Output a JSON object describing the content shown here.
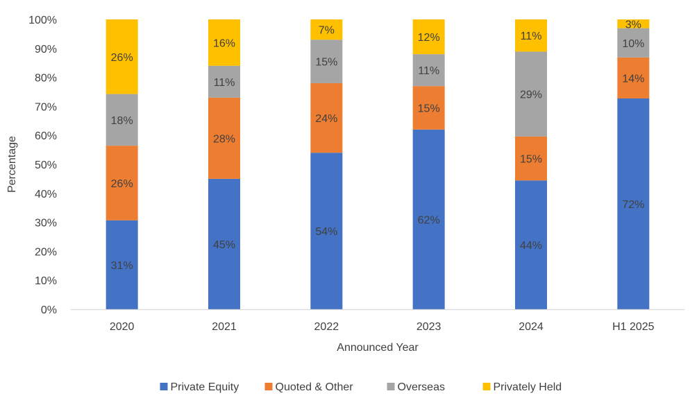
{
  "chart_data": {
    "type": "bar",
    "stacked": true,
    "percent": true,
    "categories": [
      "2020",
      "2021",
      "2022",
      "2023",
      "2024",
      "H1 2025"
    ],
    "series": [
      {
        "name": "Private Equity",
        "color": "#4472C4",
        "values": [
          31,
          45,
          54,
          62,
          44,
          72
        ],
        "labels": [
          "31%",
          "45%",
          "54%",
          "62%",
          "44%",
          "72%"
        ]
      },
      {
        "name": "Quoted & Other",
        "color": "#ED7D31",
        "values": [
          26,
          28,
          24,
          15,
          15,
          14
        ],
        "labels": [
          "26%",
          "28%",
          "24%",
          "15%",
          "15%",
          "14%"
        ]
      },
      {
        "name": "Overseas",
        "color": "#A5A5A5",
        "values": [
          18,
          11,
          15,
          11,
          29,
          10
        ],
        "labels": [
          "18%",
          "11%",
          "15%",
          "11%",
          "29%",
          "10%"
        ]
      },
      {
        "name": "Privately Held",
        "color": "#FFC000",
        "values": [
          26,
          16,
          7,
          12,
          11,
          3
        ],
        "labels": [
          "26%",
          "16%",
          "7%",
          "12%",
          "11%",
          "3%"
        ]
      }
    ],
    "xlabel": "Announced Year",
    "ylabel": "Percentage",
    "ylim": [
      0,
      100
    ],
    "yticks": [
      "0%",
      "10%",
      "20%",
      "30%",
      "40%",
      "50%",
      "60%",
      "70%",
      "80%",
      "90%",
      "100%"
    ],
    "grid": false,
    "legend_position": "bottom"
  }
}
